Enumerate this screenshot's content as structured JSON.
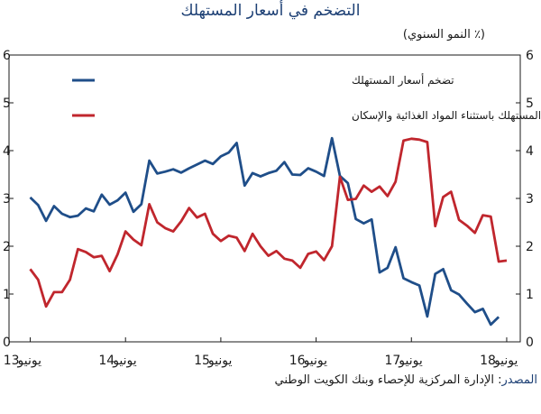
{
  "chart_data": {
    "type": "line",
    "title": "التضخم في أسعار المستهلك",
    "unit_label": "(٪ النمو السنوي)",
    "source_label": "المصدر",
    "source_text": ": الإدارة المركزية للإحصاء وبنك الكويت الوطني",
    "ylim": [
      0,
      6
    ],
    "yticks": [
      0,
      1,
      2,
      3,
      4,
      5,
      6
    ],
    "x_labels": [
      {
        "prefix": "يونيو",
        "year": "13",
        "x": 0
      },
      {
        "prefix": "يونيو",
        "year": "14",
        "x": 12
      },
      {
        "prefix": "يونيو",
        "year": "15",
        "x": 24
      },
      {
        "prefix": "يونيو",
        "year": "16",
        "x": 36
      },
      {
        "prefix": "يونيو",
        "year": "17",
        "x": 48
      },
      {
        "prefix": "يونيو",
        "year": "18",
        "x": 60
      }
    ],
    "xlim": [
      -0.4,
      60.8
    ],
    "grid": false,
    "legend_position": "top-right",
    "series": [
      {
        "name": "تضخم أسعار المستهلك",
        "color": "#1f4e89",
        "values": [
          3.02,
          2.86,
          2.53,
          2.84,
          2.68,
          2.61,
          2.64,
          2.79,
          2.73,
          3.08,
          2.87,
          2.96,
          3.12,
          2.72,
          2.88,
          3.79,
          3.52,
          3.56,
          3.61,
          3.54,
          3.63,
          3.71,
          3.79,
          3.72,
          3.88,
          3.96,
          4.16,
          3.27,
          3.53,
          3.46,
          3.53,
          3.58,
          3.76,
          3.5,
          3.49,
          3.63,
          3.56,
          3.47,
          4.26,
          3.47,
          3.32,
          2.57,
          2.48,
          2.56,
          1.45,
          1.55,
          1.98,
          1.33,
          1.25,
          1.18,
          0.53,
          1.42,
          1.52,
          1.08,
          0.99,
          0.8,
          0.62,
          0.69,
          0.36,
          0.52
        ]
      },
      {
        "name": "تضخم أسعار المستهلك باستثناء المواد الغذائية والإسكان",
        "color": "#c0262d",
        "values": [
          1.52,
          1.3,
          0.74,
          1.04,
          1.04,
          1.3,
          1.94,
          1.88,
          1.77,
          1.8,
          1.48,
          1.83,
          2.31,
          2.14,
          2.02,
          2.88,
          2.5,
          2.38,
          2.31,
          2.52,
          2.8,
          2.6,
          2.68,
          2.26,
          2.11,
          2.22,
          2.18,
          1.9,
          2.26,
          2.0,
          1.8,
          1.9,
          1.74,
          1.7,
          1.55,
          1.84,
          1.89,
          1.71,
          2.0,
          3.45,
          2.97,
          2.99,
          3.27,
          3.14,
          3.25,
          3.05,
          3.35,
          4.21,
          4.25,
          4.23,
          4.18,
          2.42,
          3.03,
          3.14,
          2.55,
          2.43,
          2.28,
          2.65,
          2.62,
          1.68,
          1.7
        ]
      }
    ]
  }
}
